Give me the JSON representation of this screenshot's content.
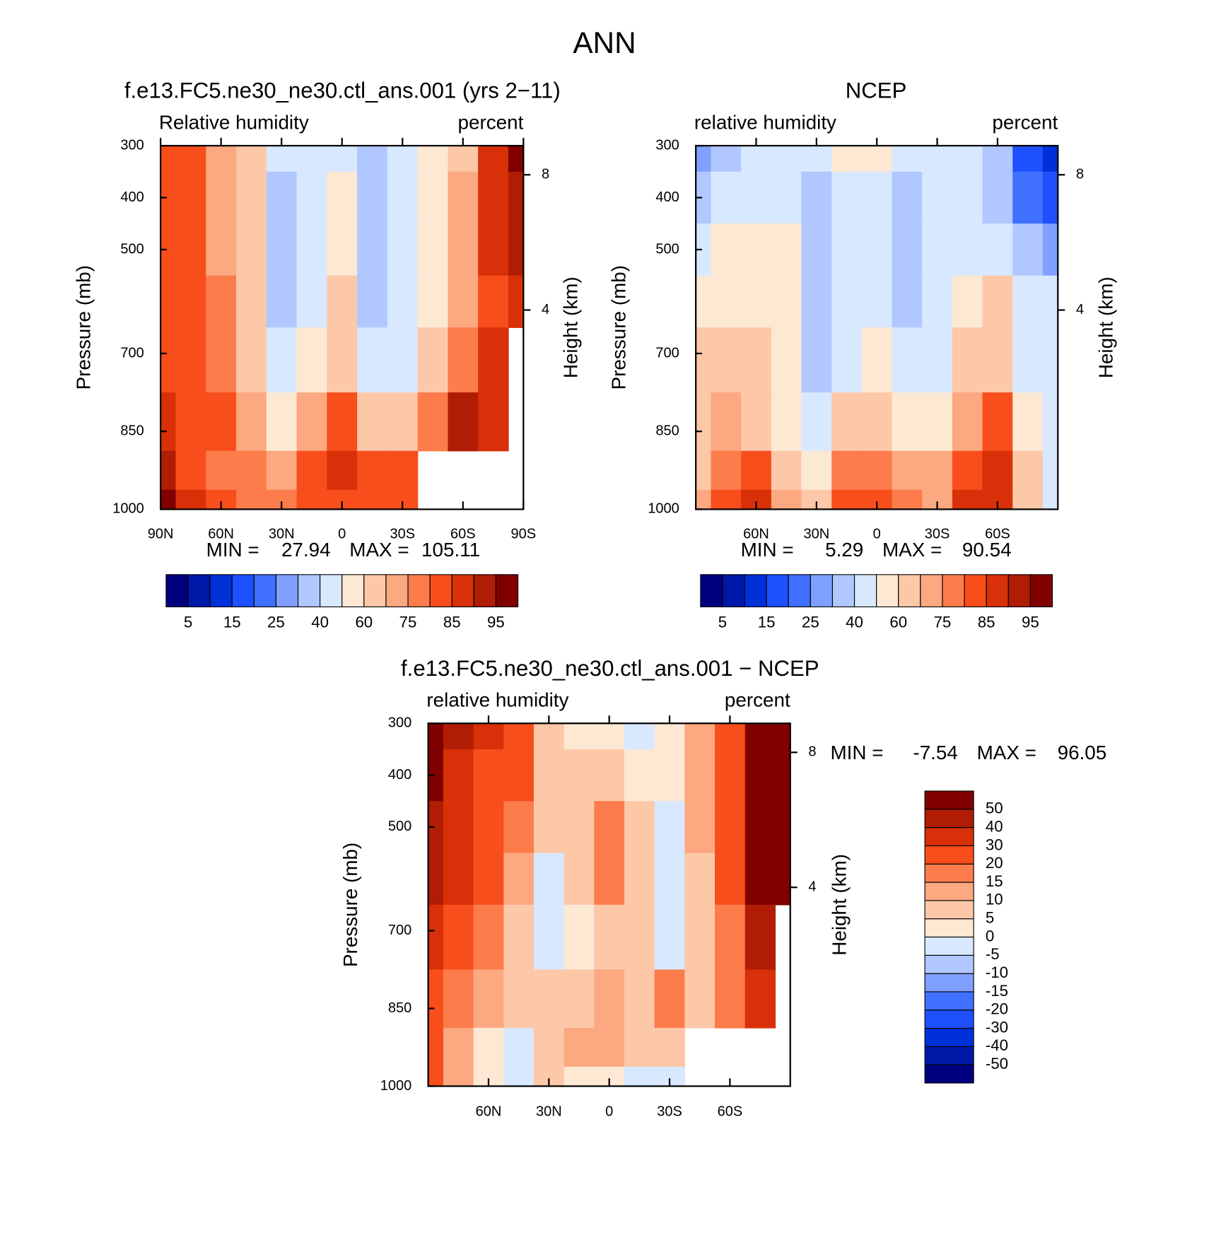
{
  "title": "ANN",
  "chart_data": [
    {
      "type": "contour",
      "title": "f.e13.FC5.ne30_ne30.ctl_ans.001 (yrs 2−11)",
      "subtitle_left": "Relative humidity",
      "subtitle_right": "percent",
      "ylabel": "Pressure (mb)",
      "y2label": "Height (km)",
      "x": [
        90,
        75,
        60,
        45,
        30,
        15,
        0,
        -15,
        -30,
        -45,
        -60,
        -75,
        -90
      ],
      "y": [
        300,
        400,
        500,
        600,
        700,
        850,
        925,
        1000
      ],
      "values": [
        [
          82,
          80,
          72,
          62,
          45,
          42,
          45,
          38,
          45,
          55,
          68,
          88,
          98
        ],
        [
          82,
          82,
          72,
          62,
          36,
          45,
          50,
          32,
          42,
          55,
          70,
          88,
          92
        ],
        [
          82,
          82,
          74,
          62,
          36,
          42,
          55,
          32,
          40,
          55,
          72,
          85,
          90
        ],
        [
          82,
          82,
          76,
          64,
          38,
          45,
          60,
          38,
          42,
          58,
          74,
          84,
          88
        ],
        [
          84,
          82,
          76,
          66,
          40,
          50,
          62,
          42,
          48,
          60,
          76,
          86,
          null
        ],
        [
          86,
          80,
          80,
          70,
          58,
          72,
          80,
          68,
          68,
          78,
          90,
          86,
          null
        ],
        [
          94,
          84,
          78,
          76,
          70,
          84,
          88,
          82,
          80,
          null,
          null,
          null,
          null
        ],
        [
          96,
          88,
          80,
          78,
          76,
          82,
          84,
          82,
          80,
          null,
          null,
          null,
          null
        ]
      ],
      "xlim": [
        90,
        -90
      ],
      "ylim": [
        1000,
        300
      ],
      "xticks": [
        {
          "value": 90,
          "label": "90N"
        },
        {
          "value": 60,
          "label": "60N"
        },
        {
          "value": 30,
          "label": "30N"
        },
        0,
        {
          "value": -30,
          "label": "30S"
        },
        {
          "value": -60,
          "label": "60S"
        },
        {
          "value": -90,
          "label": "90S"
        }
      ],
      "yticks": [
        300,
        400,
        500,
        700,
        850,
        1000
      ],
      "y2ticks": [
        8,
        4
      ],
      "min_label": "MIN =",
      "min": 27.94,
      "max_label": "MAX =",
      "max": 105.11,
      "levels": [
        5,
        10,
        15,
        20,
        25,
        30,
        40,
        50,
        60,
        70,
        75,
        80,
        85,
        90,
        95
      ],
      "label_every": 2,
      "colors": [
        "#00007f",
        "#0018a8",
        "#0030d8",
        "#1e50ff",
        "#4070ff",
        "#7fa0ff",
        "#b0c8ff",
        "#d8e8ff",
        "#fde8d4",
        "#fcc8a8",
        "#fca880",
        "#fc7c4c",
        "#f84e1c",
        "#d83008",
        "#b01c04",
        "#800000"
      ]
    },
    {
      "type": "contour",
      "title": "NCEP",
      "subtitle_left": "relative humidity",
      "subtitle_right": "percent",
      "ylabel": "Pressure (mb)",
      "y2label": "Height (km)",
      "x": [
        90,
        75,
        60,
        45,
        30,
        15,
        0,
        -15,
        -30,
        -45,
        -60,
        -75,
        -90
      ],
      "y": [
        300,
        400,
        500,
        600,
        700,
        850,
        925,
        1000
      ],
      "values": [
        [
          25,
          35,
          45,
          45,
          45,
          50,
          55,
          45,
          45,
          40,
          30,
          18,
          12
        ],
        [
          35,
          45,
          45,
          42,
          30,
          40,
          45,
          30,
          42,
          45,
          35,
          20,
          15
        ],
        [
          45,
          55,
          55,
          50,
          30,
          42,
          45,
          30,
          40,
          45,
          45,
          30,
          25
        ],
        [
          52,
          55,
          55,
          50,
          35,
          45,
          48,
          35,
          40,
          55,
          60,
          40,
          42
        ],
        [
          62,
          65,
          60,
          52,
          38,
          45,
          55,
          40,
          45,
          62,
          68,
          48,
          48
        ],
        [
          62,
          70,
          68,
          58,
          45,
          65,
          62,
          55,
          55,
          70,
          80,
          58,
          45
        ],
        [
          65,
          78,
          80,
          65,
          58,
          75,
          75,
          70,
          72,
          82,
          88,
          62,
          45
        ],
        [
          70,
          82,
          85,
          70,
          62,
          82,
          82,
          78,
          72,
          85,
          88,
          62,
          45
        ]
      ],
      "xlim": [
        90,
        -90
      ],
      "ylim": [
        1000,
        300
      ],
      "xticks": [
        {
          "value": 60,
          "label": "60N"
        },
        {
          "value": 30,
          "label": "30N"
        },
        0,
        {
          "value": -30,
          "label": "30S"
        },
        {
          "value": -60,
          "label": "60S"
        }
      ],
      "yticks": [
        300,
        400,
        500,
        700,
        850,
        1000
      ],
      "y2ticks": [
        8,
        4
      ],
      "min_label": "MIN =",
      "min": 5.29,
      "max_label": "MAX =",
      "max": 90.54,
      "levels": [
        5,
        10,
        15,
        20,
        25,
        30,
        40,
        50,
        60,
        70,
        75,
        80,
        85,
        90,
        95
      ],
      "label_every": 2,
      "colors": [
        "#00007f",
        "#0018a8",
        "#0030d8",
        "#1e50ff",
        "#4070ff",
        "#7fa0ff",
        "#b0c8ff",
        "#d8e8ff",
        "#fde8d4",
        "#fcc8a8",
        "#fca880",
        "#fc7c4c",
        "#f84e1c",
        "#d83008",
        "#b01c04",
        "#800000"
      ]
    },
    {
      "type": "contour",
      "title": "f.e13.FC5.ne30_ne30.ctl_ans.001 − NCEP",
      "subtitle_left": "relative humidity",
      "subtitle_right": "percent",
      "ylabel": "Pressure (mb)",
      "y2label": "Height (km)",
      "x": [
        90,
        75,
        60,
        45,
        30,
        15,
        0,
        -15,
        -30,
        -45,
        -60,
        -75,
        -90
      ],
      "y": [
        300,
        400,
        500,
        600,
        700,
        850,
        925,
        1000
      ],
      "values": [
        [
          55,
          42,
          30,
          22,
          8,
          2,
          2,
          -2,
          2,
          10,
          22,
          55,
          60
        ],
        [
          50,
          35,
          25,
          20,
          8,
          5,
          6,
          2,
          2,
          12,
          25,
          55,
          55
        ],
        [
          45,
          30,
          22,
          15,
          8,
          5,
          18,
          6,
          -2,
          10,
          25,
          55,
          55
        ],
        [
          40,
          30,
          22,
          12,
          -2,
          6,
          18,
          6,
          -2,
          8,
          22,
          55,
          50
        ],
        [
          32,
          28,
          18,
          8,
          -2,
          4,
          5,
          6,
          -2,
          6,
          15,
          40,
          null
        ],
        [
          22,
          18,
          12,
          6,
          8,
          8,
          12,
          5,
          18,
          8,
          15,
          35,
          null
        ],
        [
          26,
          12,
          2,
          -2,
          6,
          10,
          12,
          8,
          8,
          null,
          null,
          null,
          null
        ],
        [
          26,
          10,
          2,
          -2,
          5,
          4,
          2,
          -2,
          -2,
          null,
          null,
          null,
          null
        ]
      ],
      "xlim": [
        90,
        -90
      ],
      "ylim": [
        1000,
        300
      ],
      "xticks": [
        {
          "value": 60,
          "label": "60N"
        },
        {
          "value": 30,
          "label": "30N"
        },
        0,
        {
          "value": -30,
          "label": "30S"
        },
        {
          "value": -60,
          "label": "60S"
        }
      ],
      "yticks": [
        300,
        400,
        500,
        700,
        850,
        1000
      ],
      "y2ticks": [
        8,
        4
      ],
      "min_label": "MIN =",
      "min": -7.54,
      "max_label": "MAX =",
      "max": 96.05,
      "levels": [
        -50,
        -40,
        -30,
        -20,
        -15,
        -10,
        -5,
        0,
        5,
        10,
        15,
        20,
        30,
        40,
        50
      ],
      "label_every": 1,
      "colors": [
        "#00007f",
        "#0018a8",
        "#0030d8",
        "#1e50ff",
        "#4070ff",
        "#7fa0ff",
        "#b0c8ff",
        "#d8e8ff",
        "#fde8d4",
        "#fcc8a8",
        "#fca880",
        "#fc7c4c",
        "#f84e1c",
        "#d83008",
        "#b01c04",
        "#800000"
      ]
    }
  ]
}
